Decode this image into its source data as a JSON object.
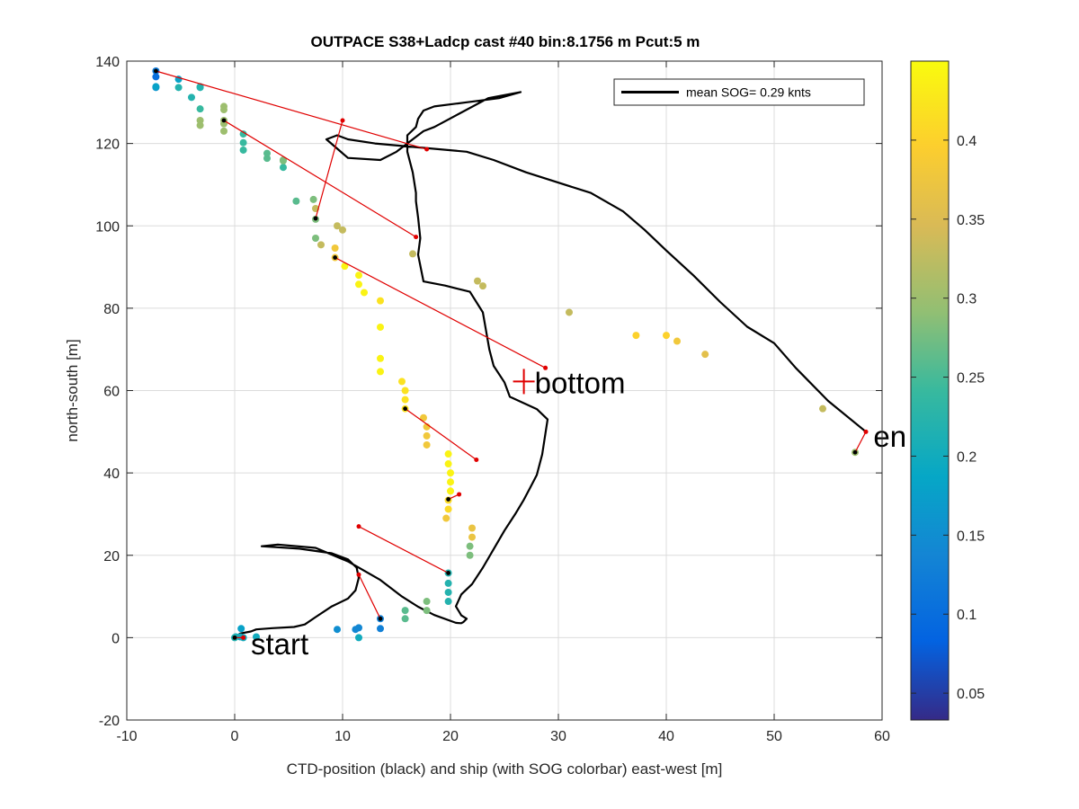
{
  "chart_data": {
    "type": "scatter",
    "title": "OUTPACE S38+Ladcp cast #40 bin:8.1756 m  Pcut:5 m",
    "xlabel": "CTD-position (black) and ship (with SOG colorbar) east-west [m]",
    "ylabel": "north-south [m]",
    "xlim": [
      -10,
      60
    ],
    "ylim": [
      -20,
      140
    ],
    "xticks": [
      "-10",
      "0",
      "10",
      "20",
      "30",
      "40",
      "50",
      "60"
    ],
    "yticks": [
      "-20",
      "0",
      "20",
      "40",
      "60",
      "80",
      "100",
      "120",
      "140"
    ],
    "grid": true,
    "legend": {
      "placement": "top-right",
      "entries": [
        "mean SOG=  0.29 knts"
      ]
    },
    "colorbar": {
      "colormap": "parula",
      "range": [
        0.033,
        0.45
      ],
      "ticks": [
        "0.05",
        "0.1",
        "0.15",
        "0.2",
        "0.25",
        "0.3",
        "0.35",
        "0.4"
      ]
    },
    "annotations": [
      {
        "text": "start",
        "x": 1.5,
        "y": -1.5
      },
      {
        "text": "bottom",
        "x": 27.8,
        "y": 62
      },
      {
        "text": "en",
        "x": 59.2,
        "y": 49
      }
    ],
    "bottom_marker": {
      "x": 26.8,
      "y": 62.2
    },
    "ctd_track": {
      "name": "CTD-position (black)",
      "x": [
        0,
        0.5,
        1.5,
        2.0,
        3.5,
        5.5,
        6.5,
        7.5,
        9.0,
        10.5,
        11.2,
        11.5,
        11.3,
        10.5,
        9.0,
        6.0,
        2.5,
        4.0,
        7.5,
        10.5,
        13.5,
        15.5,
        17.0,
        18.5,
        20.5,
        21.0,
        21.2,
        21.5,
        21.0,
        20.8,
        20.5,
        21.0,
        22.0,
        23.0,
        24.0,
        25.0,
        26.0,
        26.8,
        27.4,
        28.0,
        28.5,
        29.0,
        28.0,
        25.5,
        25.0,
        24.0,
        23.6,
        23.0,
        21.8,
        19.5,
        17.5,
        17.0,
        17.2,
        17.0,
        16.8,
        16.8,
        16.5,
        16.0,
        16.0,
        16.8,
        17.0,
        17.5,
        18.5,
        21.5,
        24.5,
        26.5,
        23.5,
        18.5,
        17.5,
        16.5,
        15.0,
        13.5,
        10.5,
        8.5,
        9.5,
        10.5,
        13.0,
        21.5,
        24.0,
        27.0,
        33.0,
        36.0,
        38.0,
        40.0,
        42.5,
        45.0,
        47.5,
        50.0,
        52.0,
        55.0,
        58.5
      ],
      "y": [
        0,
        1,
        1.5,
        2,
        2.3,
        2.6,
        3.2,
        5,
        7.6,
        9.5,
        11.5,
        14.5,
        17,
        19,
        20.5,
        21.6,
        22.2,
        22.6,
        21.8,
        18.5,
        14,
        10,
        7.5,
        5.5,
        3.6,
        3.5,
        3.8,
        4.6,
        5.4,
        6.3,
        7.6,
        10.5,
        13,
        17,
        21.5,
        26,
        30,
        33.5,
        36.5,
        39.5,
        44.5,
        53,
        55.5,
        58.5,
        62,
        66,
        70,
        79,
        84,
        85.5,
        86.5,
        93,
        97,
        102,
        106,
        108,
        113,
        118,
        122,
        124,
        126,
        128,
        129,
        130,
        131,
        132.5,
        131,
        124,
        123,
        121,
        118,
        116,
        116.5,
        121,
        122,
        121,
        120,
        118,
        116,
        113,
        108,
        103.5,
        99,
        94,
        88,
        81.5,
        75.5,
        71.5,
        65.5,
        57.5,
        50
      ]
    },
    "sog_markers": {
      "name": "ship (with SOG colorbar)",
      "x": [
        0.1,
        0.5,
        0.8,
        0.6,
        9.5,
        11.2,
        11.5,
        13.5,
        13.5,
        15.8,
        15.8,
        17.8,
        17.8,
        19.8,
        19.8,
        19.8,
        19.8,
        21.8,
        21.8,
        22.0,
        22.0,
        19.6,
        19.8,
        19.8,
        20.0,
        20.0,
        20.0,
        19.8,
        19.8,
        17.8,
        17.8,
        17.8,
        17.5,
        15.8,
        15.8,
        15.8,
        15.5,
        13.5,
        13.5,
        13.5,
        13.5,
        12.0,
        11.5,
        11.5,
        10.2,
        9.3,
        9.3,
        8.0,
        7.5,
        10.0,
        9.5,
        7.5,
        7.5,
        7.3,
        5.7,
        4.5,
        3.0,
        3.0,
        0.8,
        0.8,
        0.8,
        -1.0,
        -1.0,
        -1.0,
        -3.2,
        -3.2,
        -3.2,
        -4.0,
        -5.2,
        -5.2,
        -7.3,
        -7.3,
        -7.3,
        -7.3,
        -1.0,
        -1.0,
        -3.2,
        -3.2,
        4.5,
        4.5,
        0.0,
        2.0,
        11.5,
        16.5,
        22.5,
        23.0,
        31.0,
        37.2,
        40.0,
        41.0,
        43.6,
        54.5,
        57.5
      ],
      "y": [
        0.2,
        0.2,
        0.0,
        2.2,
        2.0,
        2.0,
        2.4,
        2.2,
        4.6,
        4.6,
        6.6,
        6.6,
        8.8,
        8.8,
        11.0,
        13.2,
        15.7,
        20.0,
        22.2,
        24.4,
        26.6,
        29.0,
        31.2,
        33.4,
        35.6,
        37.8,
        40.0,
        42.2,
        44.6,
        46.8,
        49.0,
        51.2,
        53.4,
        55.6,
        57.8,
        60.0,
        62.2,
        64.6,
        67.8,
        75.4,
        81.8,
        83.8,
        85.8,
        88.0,
        90.2,
        92.3,
        94.6,
        95.4,
        97.0,
        99.0,
        100.0,
        101.6,
        104.2,
        106.4,
        106.0,
        114.2,
        116.4,
        117.6,
        118.4,
        120.2,
        122.3,
        123.0,
        124.8,
        125.6,
        124.4,
        125.6,
        128.4,
        131.2,
        133.6,
        135.6,
        137.6,
        136.2,
        133.6,
        133.8,
        129.0,
        128.2,
        133.6,
        133.8,
        116.0,
        115.8,
        0.0,
        0.2,
        0.0,
        93.2,
        86.6,
        85.4,
        79.0,
        73.4,
        73.4,
        72.0,
        68.8,
        55.6,
        45.0
      ],
      "sog": [
        0.2,
        0.2,
        0.2,
        0.18,
        0.15,
        0.14,
        0.14,
        0.13,
        0.13,
        0.26,
        0.26,
        0.28,
        0.28,
        0.22,
        0.22,
        0.22,
        0.22,
        0.28,
        0.28,
        0.37,
        0.37,
        0.38,
        0.41,
        0.41,
        0.44,
        0.44,
        0.44,
        0.44,
        0.44,
        0.38,
        0.38,
        0.38,
        0.38,
        0.42,
        0.42,
        0.42,
        0.42,
        0.44,
        0.44,
        0.44,
        0.42,
        0.44,
        0.44,
        0.44,
        0.44,
        0.38,
        0.38,
        0.33,
        0.28,
        0.33,
        0.33,
        0.28,
        0.33,
        0.28,
        0.26,
        0.24,
        0.26,
        0.26,
        0.24,
        0.24,
        0.24,
        0.3,
        0.3,
        0.3,
        0.3,
        0.3,
        0.24,
        0.22,
        0.22,
        0.18,
        0.12,
        0.1,
        0.16,
        0.18,
        0.3,
        0.3,
        0.22,
        0.22,
        0.28,
        0.28,
        0.22,
        0.2,
        0.2,
        0.33,
        0.33,
        0.33,
        0.33,
        0.4,
        0.4,
        0.38,
        0.36,
        0.33,
        0.3
      ]
    },
    "ctd_points": {
      "x": [
        0.0,
        13.5,
        19.8,
        19.8,
        15.8,
        9.3,
        7.5,
        -1.0,
        -7.3,
        57.5
      ],
      "y": [
        0.0,
        4.6,
        15.7,
        33.6,
        55.6,
        92.3,
        101.8,
        125.6,
        137.6,
        45.0
      ]
    },
    "red_segments": [
      {
        "x": [
          0.0,
          0.8
        ],
        "y": [
          0.0,
          0.0
        ]
      },
      {
        "x": [
          13.5,
          11.5
        ],
        "y": [
          4.6,
          15.3
        ]
      },
      {
        "x": [
          19.8,
          11.5
        ],
        "y": [
          15.7,
          27.0
        ]
      },
      {
        "x": [
          19.8,
          20.8
        ],
        "y": [
          33.6,
          34.8
        ]
      },
      {
        "x": [
          15.8,
          22.4
        ],
        "y": [
          55.6,
          43.2
        ]
      },
      {
        "x": [
          9.3,
          28.8
        ],
        "y": [
          92.3,
          65.5
        ]
      },
      {
        "x": [
          7.5,
          10.0
        ],
        "y": [
          101.8,
          125.6
        ]
      },
      {
        "x": [
          -1.0,
          16.8
        ],
        "y": [
          125.6,
          97.3
        ]
      },
      {
        "x": [
          -7.3,
          17.8
        ],
        "y": [
          137.6,
          118.6
        ]
      },
      {
        "x": [
          57.5,
          58.5
        ],
        "y": [
          45.0,
          50.0
        ]
      }
    ]
  }
}
